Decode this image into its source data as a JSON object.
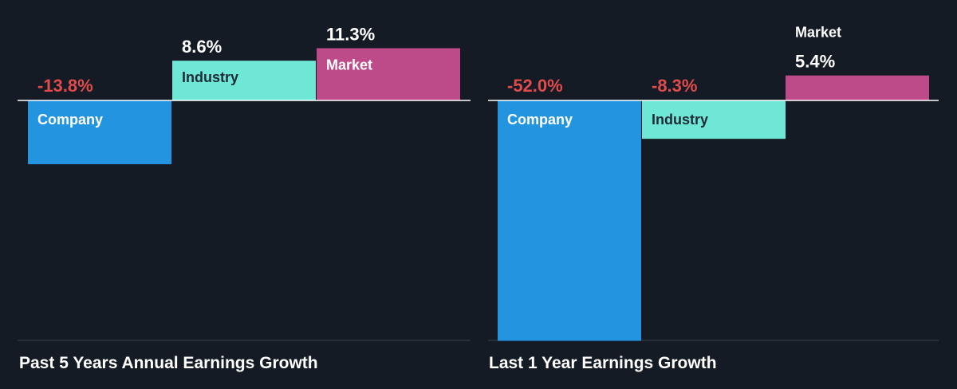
{
  "colors": {
    "background": "#151b24",
    "company": "#2394e0",
    "industry": "#6fe7d6",
    "market": "#bd4b89",
    "negative_label": "#e14b4b",
    "positive_label": "#ffffff",
    "bar_label_dark": "#1f2a36",
    "bar_label_light": "#ffffff",
    "axis_line": "#ffffff",
    "baseline": "#3a414c"
  },
  "chart_data": [
    {
      "type": "bar",
      "title": "Past 5 Years Annual Earnings Growth",
      "categories": [
        "Company",
        "Industry",
        "Market"
      ],
      "values": [
        -13.8,
        8.6,
        11.3
      ],
      "value_labels": [
        "-13.8%",
        "8.6%",
        "11.3%"
      ],
      "unit": "%",
      "ylim": [
        -52.0,
        11.3
      ],
      "grid": false,
      "legend": "none"
    },
    {
      "type": "bar",
      "title": "Last 1 Year Earnings Growth",
      "categories": [
        "Company",
        "Industry",
        "Market"
      ],
      "values": [
        -52.0,
        -8.3,
        5.4
      ],
      "value_labels": [
        "-52.0%",
        "-8.3%",
        "5.4%"
      ],
      "unit": "%",
      "ylim": [
        -52.0,
        11.3
      ],
      "grid": false,
      "legend": "none"
    }
  ]
}
